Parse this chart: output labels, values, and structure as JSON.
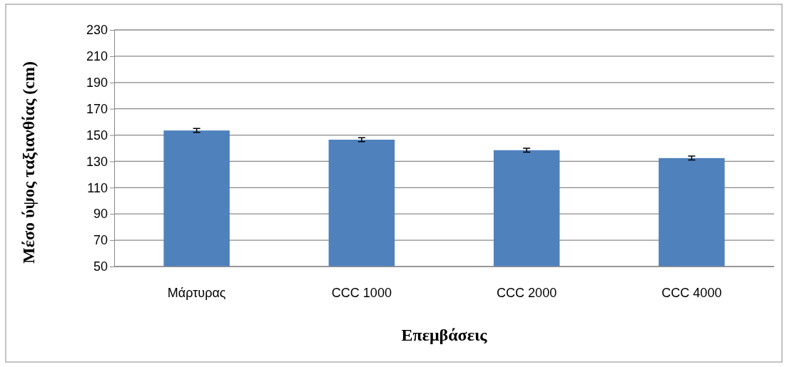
{
  "chart_data": {
    "type": "bar",
    "xlabel": "Επεμβάσεις",
    "ylabel": "Μέσο ύψος ταξιανθίας (cm)",
    "categories": [
      "Μάρτυρας",
      "CCC 1000",
      "CCC 2000",
      "CCC 4000"
    ],
    "values": [
      153.5,
      146.5,
      138.5,
      132.5
    ],
    "errors": [
      1.5,
      1.5,
      1.5,
      1.5
    ],
    "color": "#4f81bd",
    "ylim": [
      50,
      230
    ],
    "yticks": [
      50,
      70,
      90,
      110,
      130,
      150,
      170,
      190,
      210,
      230
    ],
    "grid": "y"
  }
}
